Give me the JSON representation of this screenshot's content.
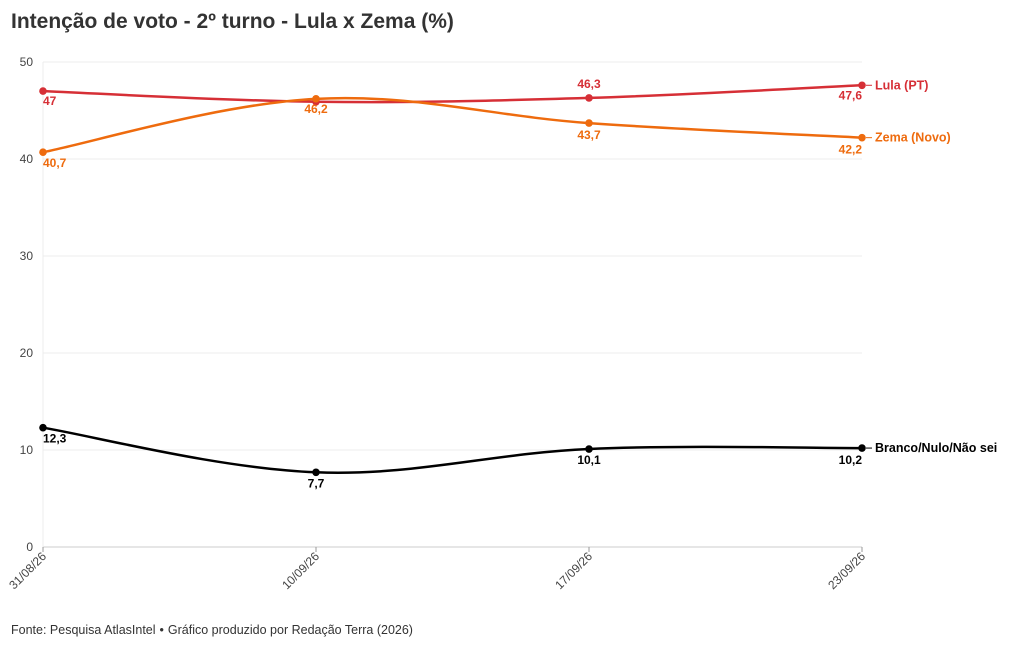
{
  "chart_data": {
    "type": "line",
    "title": "Intenção de voto - 2º turno - Lula x Zema (%)",
    "xlabel": "",
    "ylabel": "",
    "x": [
      "31/08/26",
      "10/09/26",
      "17/09/26",
      "23/09/26"
    ],
    "ylim": [
      0,
      50
    ],
    "yticks": [
      0,
      10,
      20,
      30,
      40,
      50
    ],
    "grid": true,
    "legend": "direct labels at line ends",
    "series": [
      {
        "name": "Lula (PT)",
        "color": "#d62f36",
        "values": [
          47,
          45.9,
          46.3,
          47.6
        ],
        "labels": [
          "47",
          "",
          "46,3",
          "47,6"
        ]
      },
      {
        "name": "Zema (Novo)",
        "color": "#ee6b0e",
        "values": [
          40.7,
          46.2,
          43.7,
          42.2
        ],
        "labels": [
          "40,7",
          "46,2",
          "43,7",
          "42,2"
        ]
      },
      {
        "name": "Branco/Nulo/Não sei",
        "color": "#000000",
        "values": [
          12.3,
          7.7,
          10.1,
          10.2
        ],
        "labels": [
          "12,3",
          "7,7",
          "10,1",
          "10,2"
        ]
      }
    ]
  },
  "footer": {
    "source": "Fonte: Pesquisa AtlasIntel",
    "separator": "•",
    "credit": "Gráfico produzido por Redação Terra (2026)"
  }
}
